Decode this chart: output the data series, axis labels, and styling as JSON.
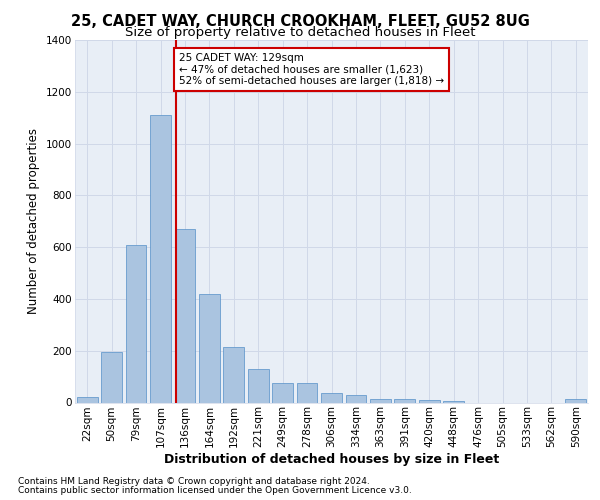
{
  "title1": "25, CADET WAY, CHURCH CROOKHAM, FLEET, GU52 8UG",
  "title2": "Size of property relative to detached houses in Fleet",
  "xlabel": "Distribution of detached houses by size in Fleet",
  "ylabel": "Number of detached properties",
  "categories": [
    "22sqm",
    "50sqm",
    "79sqm",
    "107sqm",
    "136sqm",
    "164sqm",
    "192sqm",
    "221sqm",
    "249sqm",
    "278sqm",
    "306sqm",
    "334sqm",
    "363sqm",
    "391sqm",
    "420sqm",
    "448sqm",
    "476sqm",
    "505sqm",
    "533sqm",
    "562sqm",
    "590sqm"
  ],
  "values": [
    20,
    195,
    610,
    1110,
    670,
    420,
    215,
    130,
    75,
    75,
    35,
    28,
    15,
    12,
    10,
    5,
    0,
    0,
    0,
    0,
    15
  ],
  "bar_color": "#aac4e0",
  "bar_edge_color": "#5590c8",
  "red_line_x": 3.65,
  "annotation_text": "25 CADET WAY: 129sqm\n← 47% of detached houses are smaller (1,623)\n52% of semi-detached houses are larger (1,818) →",
  "annotation_box_color": "#ffffff",
  "annotation_box_edge": "#cc0000",
  "red_line_color": "#cc0000",
  "ylim": [
    0,
    1400
  ],
  "yticks": [
    0,
    200,
    400,
    600,
    800,
    1000,
    1200,
    1400
  ],
  "grid_color": "#d0d8e8",
  "bg_color": "#e8eef6",
  "footer1": "Contains HM Land Registry data © Crown copyright and database right 2024.",
  "footer2": "Contains public sector information licensed under the Open Government Licence v3.0.",
  "title1_fontsize": 10.5,
  "title2_fontsize": 9.5,
  "xlabel_fontsize": 9,
  "ylabel_fontsize": 8.5,
  "tick_fontsize": 7.5,
  "footer_fontsize": 6.5,
  "annot_fontsize": 7.5
}
